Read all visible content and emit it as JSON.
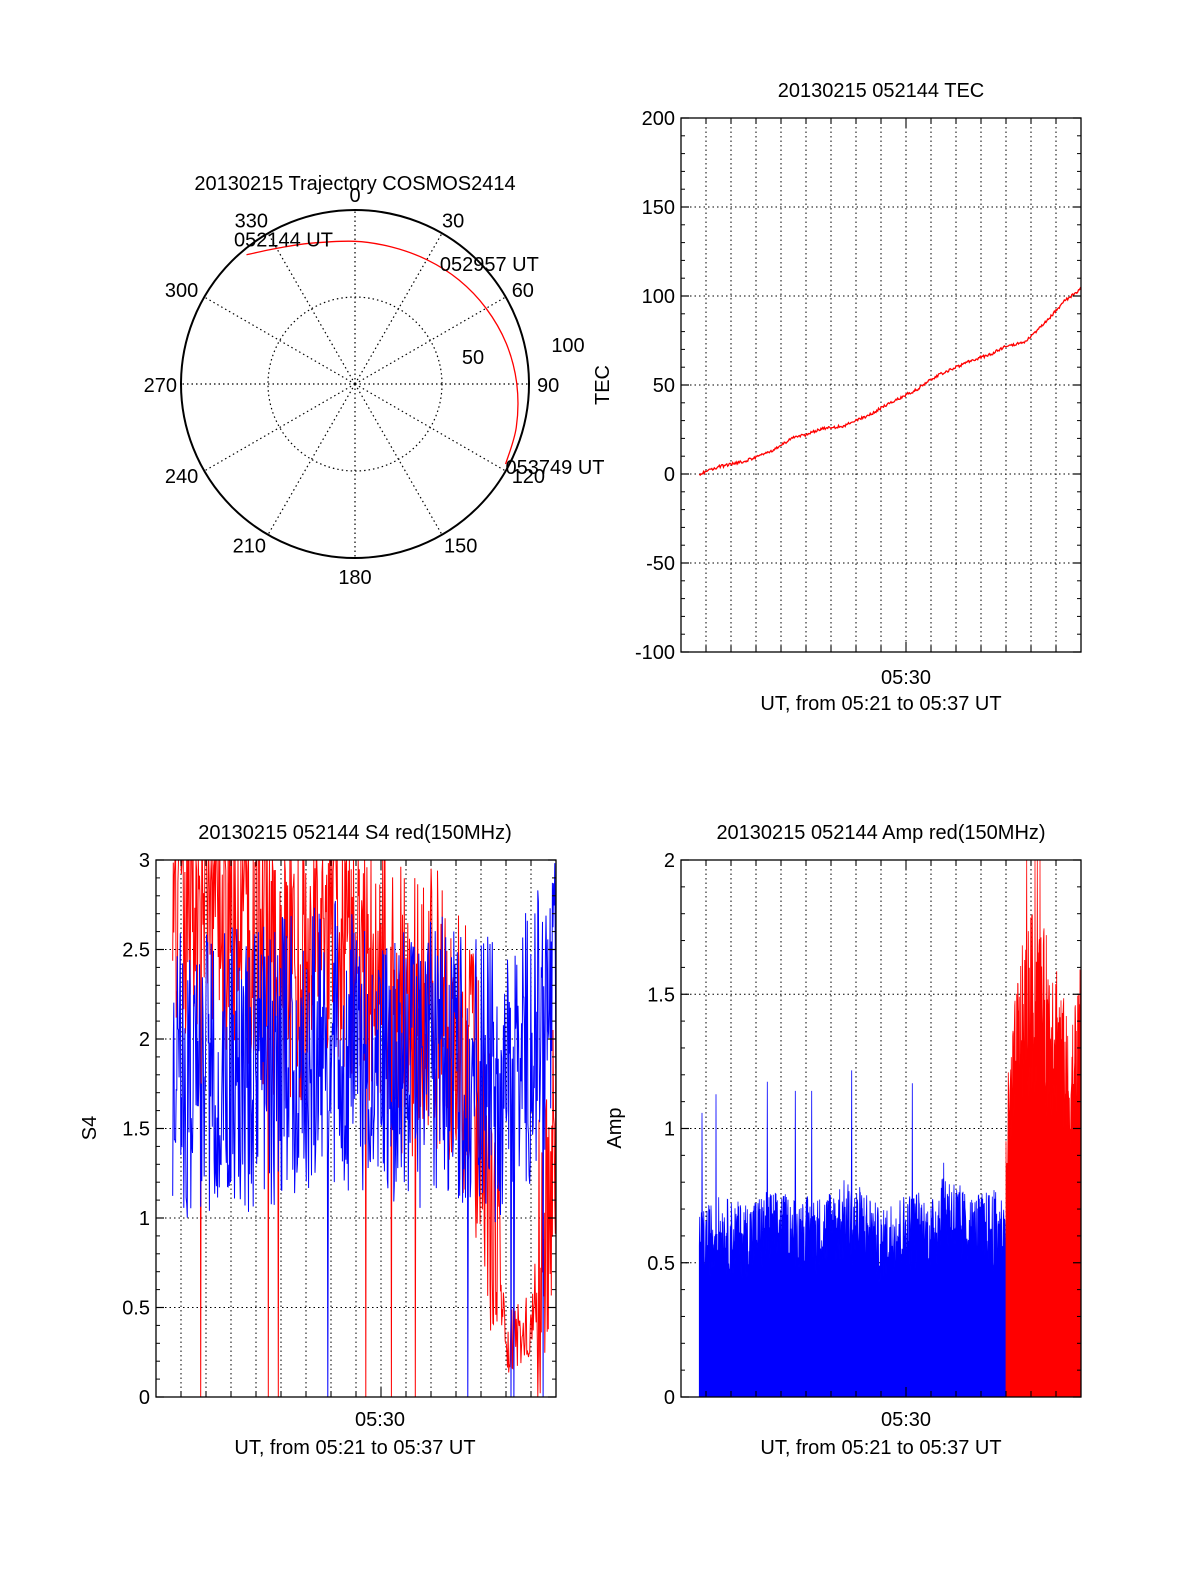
{
  "colors": {
    "red": "#ff0000",
    "blue": "#0000ff",
    "axis": "#000000"
  },
  "chart_data": [
    {
      "id": "trajectory",
      "type": "polar",
      "title": "20130215 Trajectory COSMOS2414",
      "azimuth_labels": [
        "0",
        "30",
        "60",
        "90",
        "120",
        "150",
        "180",
        "210",
        "240",
        "270",
        "300",
        "330"
      ],
      "radial_labels": [
        "50",
        "100"
      ],
      "radial_range": [
        0,
        100
      ],
      "grid": true,
      "series": [
        {
          "color": "red",
          "points": [
            {
              "az": 320,
              "r": 97
            },
            {
              "az": 330,
              "r": 90
            },
            {
              "az": 342,
              "r": 85
            },
            {
              "az": 0,
              "r": 82
            },
            {
              "az": 15,
              "r": 81.5
            },
            {
              "az": 30,
              "r": 82.5
            },
            {
              "az": 45,
              "r": 84.5
            },
            {
              "az": 60,
              "r": 87
            },
            {
              "az": 75,
              "r": 90
            },
            {
              "az": 90,
              "r": 93
            },
            {
              "az": 105,
              "r": 96
            },
            {
              "az": 118,
              "r": 98
            }
          ]
        }
      ],
      "annotations": [
        {
          "text": "052144 UT",
          "az": 320,
          "r": 97
        },
        {
          "text": "052957 UT",
          "az": 36,
          "r": 83
        },
        {
          "text": "053749 UT",
          "az": 118,
          "r": 98
        }
      ]
    },
    {
      "id": "tec",
      "type": "line",
      "title": "20130215 052144 TEC",
      "xlabel": "UT, from 05:21 to 05:37 UT",
      "ylabel": "TEC",
      "x_range": [
        "05:21",
        "05:37"
      ],
      "x_tick_labels": [
        "05:30"
      ],
      "ylim": [
        -100,
        200
      ],
      "yticks": [
        -100,
        -50,
        0,
        50,
        100,
        150,
        200
      ],
      "grid": true,
      "series": [
        {
          "color": "red",
          "x": [
            "05:21:44",
            "05:22:30",
            "05:23:30",
            "05:24:30",
            "05:25:00",
            "05:25:30",
            "05:26:00",
            "05:26:30",
            "05:27:30",
            "05:28:30",
            "05:29:30",
            "05:30:30",
            "05:31:00",
            "05:31:30",
            "05:32:30",
            "05:33:30",
            "05:34:00",
            "05:34:45",
            "05:35:30",
            "05:36:20",
            "05:37:00"
          ],
          "values": [
            0,
            4,
            7,
            12,
            16,
            21,
            22,
            25,
            27,
            33,
            41,
            48,
            53,
            57,
            63,
            68,
            72,
            74,
            84,
            97,
            104
          ]
        }
      ]
    },
    {
      "id": "s4",
      "type": "line",
      "title": "20130215 052144 S4 red(150MHz)",
      "xlabel": "UT, from 05:21 to 05:37 UT",
      "ylabel": "S4",
      "x_range": [
        "05:21",
        "05:37"
      ],
      "x_tick_labels": [
        "05:30"
      ],
      "ylim": [
        0,
        3
      ],
      "yticks": [
        "0",
        "0.5",
        "1",
        "1.5",
        "2",
        "2.5",
        "3"
      ],
      "grid": true,
      "series": [
        {
          "color": "blue",
          "x": [
            "05:21:00",
            "05:22:00",
            "05:23:00",
            "05:24:00",
            "05:25:00",
            "05:26:00",
            "05:27:00",
            "05:28:00",
            "05:29:00",
            "05:30:00",
            "05:31:00",
            "05:32:00",
            "05:33:00",
            "05:34:00",
            "05:35:00",
            "05:36:00",
            "05:37:00"
          ],
          "values": [
            1.9,
            1.8,
            1.8,
            1.9,
            1.8,
            1.9,
            1.9,
            2.0,
            1.9,
            1.8,
            1.8,
            1.9,
            1.9,
            1.8,
            1.7,
            2.0,
            2.2
          ]
        },
        {
          "color": "red",
          "x": [
            "05:21:00",
            "05:22:00",
            "05:23:00",
            "05:24:00",
            "05:25:00",
            "05:26:00",
            "05:27:00",
            "05:28:00",
            "05:29:00",
            "05:30:00",
            "05:31:00",
            "05:32:00",
            "05:33:00",
            "05:34:00",
            "05:35:00",
            "05:36:00",
            "05:37:00"
          ],
          "values": [
            2.6,
            2.8,
            2.9,
            2.7,
            2.6,
            2.4,
            2.4,
            2.7,
            2.5,
            2.4,
            2.1,
            2.2,
            2.0,
            1.6,
            0.3,
            0.4,
            1.5
          ]
        }
      ]
    },
    {
      "id": "amp",
      "type": "area",
      "title": "20130215 052144 Amp red(150MHz)",
      "xlabel": "UT, from 05:21 to 05:37 UT",
      "ylabel": "Amp",
      "x_range": [
        "05:21",
        "05:37"
      ],
      "x_tick_labels": [
        "05:30"
      ],
      "ylim": [
        0,
        2
      ],
      "yticks": [
        "0",
        "0.5",
        "1",
        "1.5",
        "2"
      ],
      "grid": true,
      "series": [
        {
          "color": "blue",
          "x": [
            "05:21:44",
            "05:22:30",
            "05:23:30",
            "05:24:30",
            "05:25:30",
            "05:26:30",
            "05:27:30",
            "05:28:30",
            "05:29:00",
            "05:29:30",
            "05:30:30",
            "05:31:00",
            "05:31:30",
            "05:32:00",
            "05:32:30",
            "05:33:30",
            "05:34:00",
            "05:35:00",
            "05:36:00",
            "05:37:00"
          ],
          "values": [
            0.55,
            0.6,
            0.58,
            0.62,
            0.6,
            0.6,
            0.65,
            0.62,
            0.55,
            0.6,
            0.62,
            0.58,
            0.7,
            0.65,
            0.6,
            0.62,
            0.6,
            0.55,
            0.5,
            0.55
          ]
        },
        {
          "color": "red",
          "x": [
            "05:34:00",
            "05:34:30",
            "05:35:00",
            "05:35:30",
            "05:36:00",
            "05:36:30",
            "05:37:00"
          ],
          "values": [
            0.9,
            1.3,
            1.45,
            1.4,
            1.35,
            1.1,
            1.3
          ]
        }
      ]
    }
  ]
}
